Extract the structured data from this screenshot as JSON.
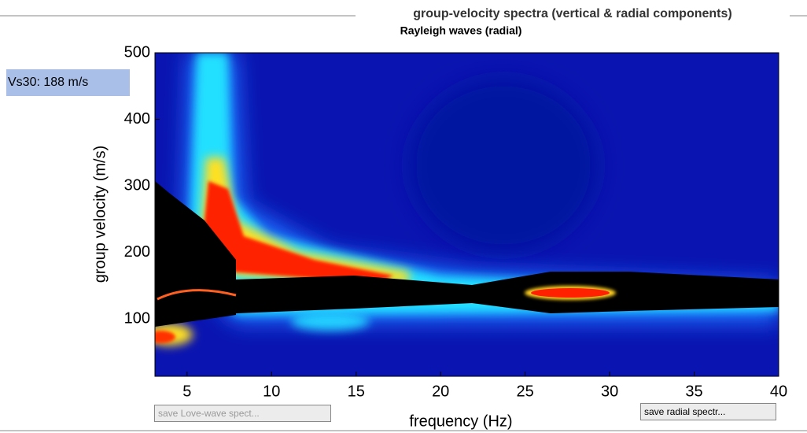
{
  "panel": {
    "title": "group-velocity spectra (vertical & radial components)"
  },
  "vs30_label": "Vs30: 188 m/s",
  "buttons": [
    "save Love-wave spect...",
    "save radial spectr..."
  ],
  "chart_data": {
    "type": "heatmap",
    "title": "Rayleigh waves (radial)",
    "xlabel": "frequency (Hz)",
    "ylabel": "group velocity (m/s)",
    "xlim": [
      3.1,
      40
    ],
    "ylim": [
      14,
      500
    ],
    "xticks": [
      5,
      10,
      15,
      20,
      25,
      30,
      35,
      40
    ],
    "yticks": [
      100,
      200,
      300,
      400,
      500
    ]
  }
}
